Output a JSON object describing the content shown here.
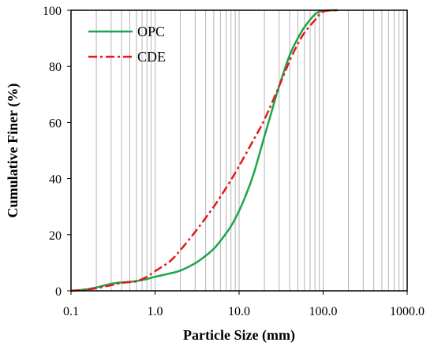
{
  "chart_data": {
    "type": "line",
    "xlabel": "Particle Size (mm)",
    "ylabel": "Cumulative Finer (%)",
    "xscale": "log",
    "xlim": [
      0.1,
      1000.0
    ],
    "ylim": [
      0,
      100
    ],
    "x_tick_labels": [
      "0.1",
      "1.0",
      "10.0",
      "100.0",
      "1000.0"
    ],
    "x_ticks": [
      0.1,
      1,
      10,
      100,
      1000
    ],
    "y_tick_labels": [
      "0",
      "20",
      "40",
      "60",
      "80",
      "100"
    ],
    "y_ticks": [
      0,
      20,
      40,
      60,
      80,
      100
    ],
    "grid": "vertical log gridlines",
    "legend_position": "top-left",
    "series": [
      {
        "name": "OPC",
        "color": "#1aa64a",
        "dash": "solid",
        "points": [
          [
            0.1,
            0
          ],
          [
            0.15,
            0.5
          ],
          [
            0.2,
            1.2
          ],
          [
            0.3,
            2.5
          ],
          [
            0.4,
            3.0
          ],
          [
            0.5,
            3.2
          ],
          [
            0.6,
            3.5
          ],
          [
            0.8,
            4.2
          ],
          [
            1.0,
            5.0
          ],
          [
            1.5,
            6.2
          ],
          [
            2.0,
            7.2
          ],
          [
            3.0,
            9.8
          ],
          [
            4.0,
            12.5
          ],
          [
            5.0,
            15.0
          ],
          [
            6.0,
            17.8
          ],
          [
            8.0,
            23.0
          ],
          [
            10.0,
            28.5
          ],
          [
            12.0,
            34.0
          ],
          [
            15.0,
            42.0
          ],
          [
            20.0,
            55.0
          ],
          [
            25.0,
            65.0
          ],
          [
            30.0,
            73.0
          ],
          [
            40.0,
            84.0
          ],
          [
            50.0,
            90.0
          ],
          [
            60.0,
            94.0
          ],
          [
            80.0,
            98.5
          ],
          [
            100.0,
            99.8
          ],
          [
            150.0,
            100
          ]
        ]
      },
      {
        "name": "CDE",
        "color": "#e31a1c",
        "dash": "dashdot",
        "points": [
          [
            0.1,
            0
          ],
          [
            0.15,
            0.4
          ],
          [
            0.2,
            0.9
          ],
          [
            0.3,
            2.0
          ],
          [
            0.4,
            2.8
          ],
          [
            0.5,
            3.1
          ],
          [
            0.6,
            3.4
          ],
          [
            0.8,
            5.0
          ],
          [
            1.0,
            7.0
          ],
          [
            1.5,
            10.5
          ],
          [
            2.0,
            14.5
          ],
          [
            3.0,
            21.0
          ],
          [
            4.0,
            26.0
          ],
          [
            5.0,
            30.0
          ],
          [
            6.0,
            33.5
          ],
          [
            8.0,
            39.5
          ],
          [
            10.0,
            44.5
          ],
          [
            15.0,
            54.0
          ],
          [
            20.0,
            61.0
          ],
          [
            30.0,
            73.0
          ],
          [
            40.0,
            82.0
          ],
          [
            50.0,
            88.0
          ],
          [
            60.0,
            92.0
          ],
          [
            80.0,
            96.5
          ],
          [
            100.0,
            99.5
          ],
          [
            150.0,
            100
          ]
        ]
      }
    ]
  }
}
